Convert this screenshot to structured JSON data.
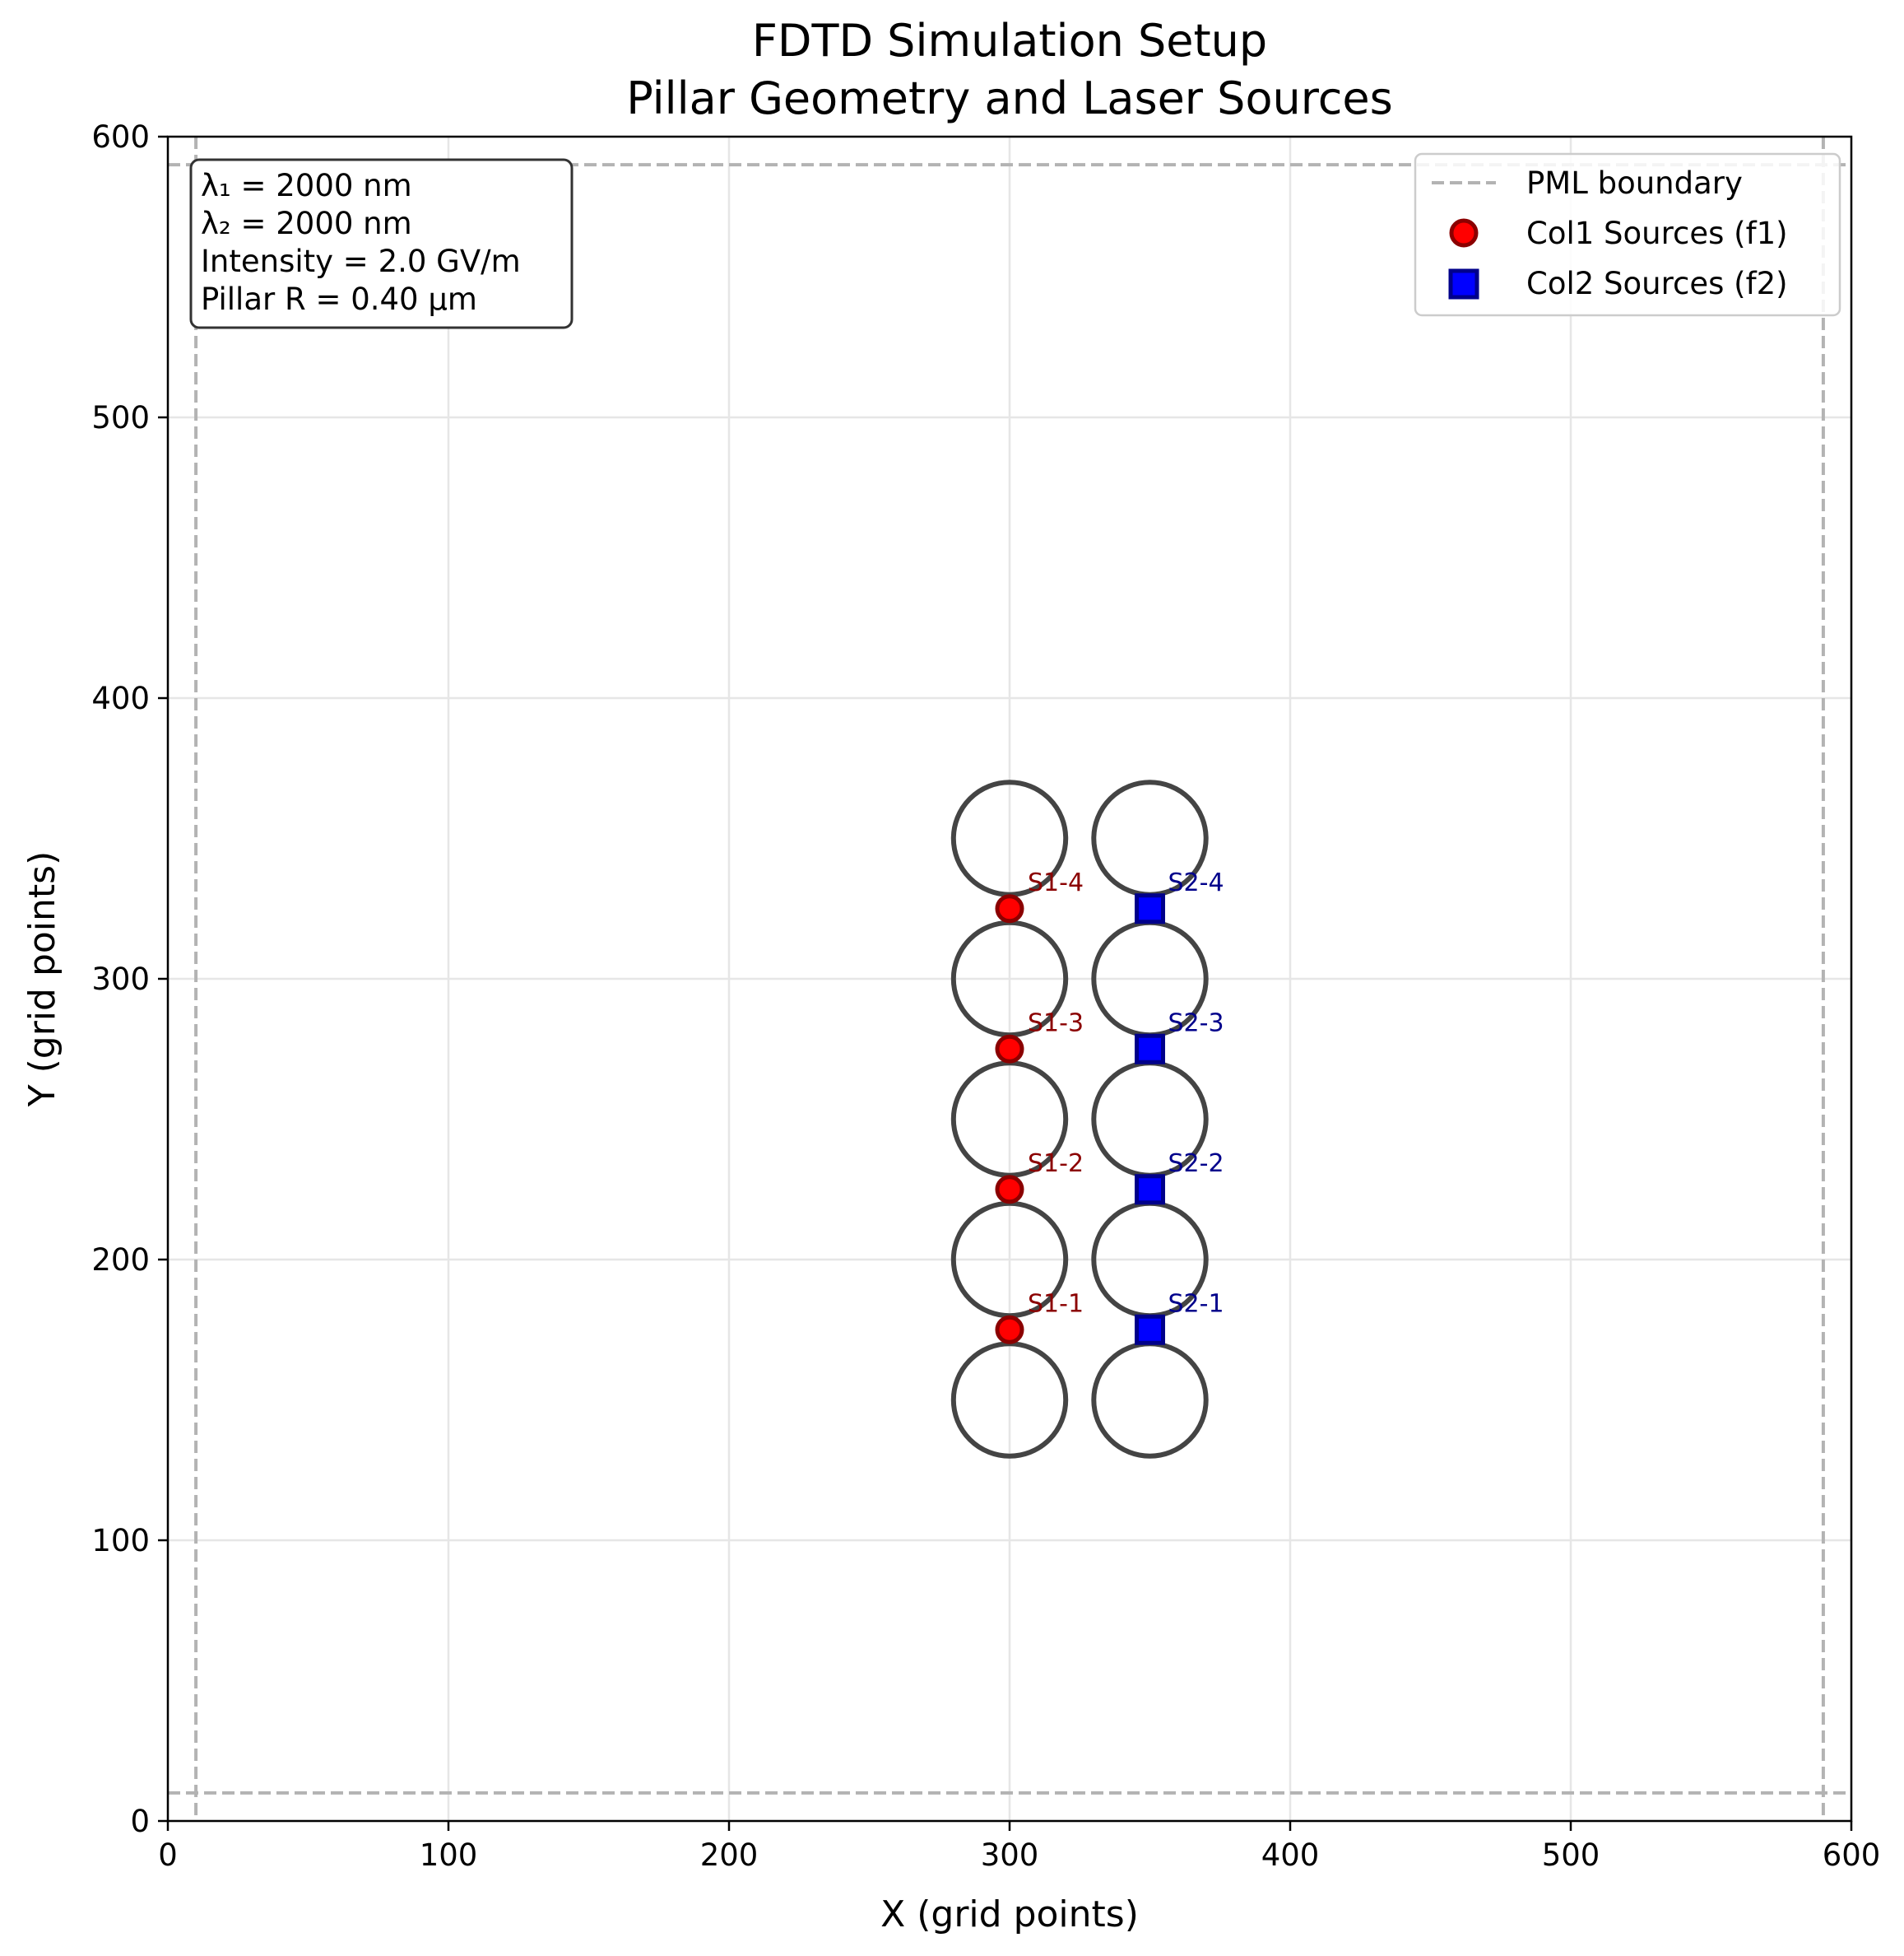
{
  "chart_data": {
    "type": "scatter",
    "title": [
      "FDTD Simulation Setup",
      "Pillar Geometry and Laser Sources"
    ],
    "xlabel": "X (grid points)",
    "ylabel": "Y (grid points)",
    "xlim": [
      0,
      600
    ],
    "ylim": [
      0,
      600
    ],
    "xticks": [
      0,
      100,
      200,
      300,
      400,
      500,
      600
    ],
    "yticks": [
      0,
      100,
      200,
      300,
      400,
      500,
      600
    ],
    "grid": true,
    "legend_position": "top-right",
    "info_box": {
      "lines": [
        "λ₁ = 2000 nm",
        "λ₂ = 2000 nm",
        "Intensity = 2.0 GV/m",
        "Pillar R = 0.40 µm"
      ],
      "position": "top-left"
    },
    "pml_boundary": {
      "name": "PML boundary",
      "x": [
        10,
        590
      ],
      "y": [
        10,
        590
      ],
      "color": "#b3b3b3",
      "style": "dashed"
    },
    "pillars": {
      "radius": 20,
      "color": "#444444",
      "centers": [
        [
          300,
          150
        ],
        [
          300,
          200
        ],
        [
          300,
          250
        ],
        [
          300,
          300
        ],
        [
          300,
          350
        ],
        [
          350,
          150
        ],
        [
          350,
          200
        ],
        [
          350,
          250
        ],
        [
          350,
          300
        ],
        [
          350,
          350
        ]
      ]
    },
    "series": [
      {
        "name": "Col1 Sources (f1)",
        "marker": "circle",
        "color": "#ff0000",
        "edge_color": "#8b0000",
        "label_color": "#8b0000",
        "points": [
          {
            "label": "S1-1",
            "x": 300,
            "y": 175
          },
          {
            "label": "S1-2",
            "x": 300,
            "y": 225
          },
          {
            "label": "S1-3",
            "x": 300,
            "y": 275
          },
          {
            "label": "S1-4",
            "x": 300,
            "y": 325
          }
        ]
      },
      {
        "name": "Col2 Sources (f2)",
        "marker": "square",
        "color": "#0000ff",
        "edge_color": "#00008b",
        "label_color": "#00008b",
        "points": [
          {
            "label": "S2-1",
            "x": 350,
            "y": 175
          },
          {
            "label": "S2-2",
            "x": 350,
            "y": 225
          },
          {
            "label": "S2-3",
            "x": 350,
            "y": 275
          },
          {
            "label": "S2-4",
            "x": 350,
            "y": 325
          }
        ]
      }
    ]
  }
}
